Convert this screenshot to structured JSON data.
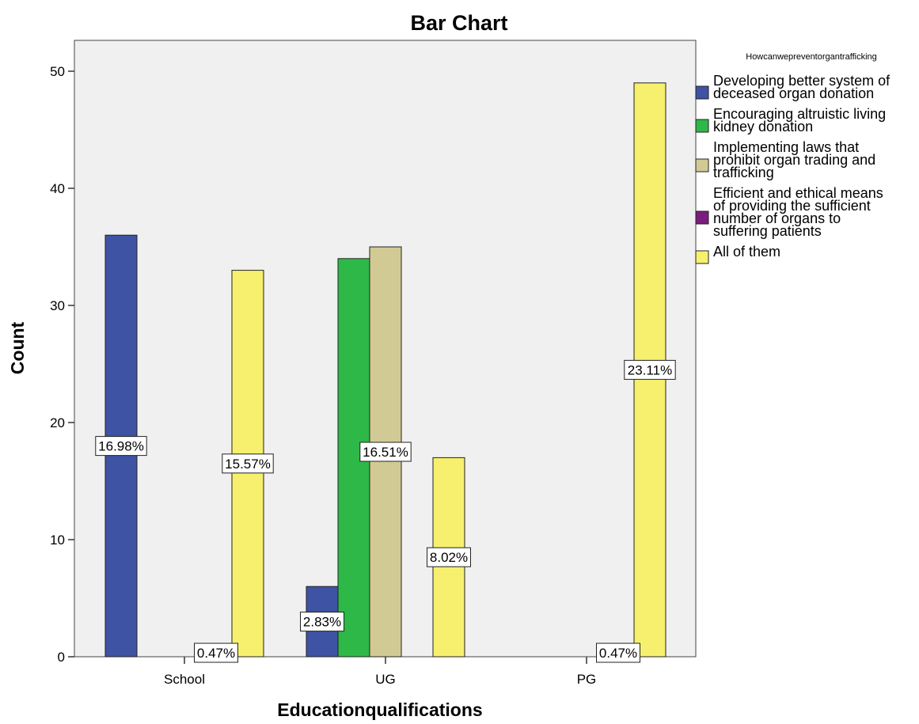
{
  "chart_data": {
    "type": "bar",
    "title": "Bar Chart",
    "xlabel": "Educationqualifications",
    "ylabel": "Count",
    "ylim": [
      0,
      52
    ],
    "yticks": [
      0,
      10,
      20,
      30,
      40,
      50
    ],
    "categories": [
      "School",
      "UG",
      "PG"
    ],
    "legend_title": "Howcanwepreventorgantrafficking",
    "legend_position": "right",
    "grid": false,
    "series": [
      {
        "name": "Developing better system of deceased organ donation",
        "legend_lines": [
          "Developing better system of",
          "deceased organ donation"
        ],
        "color": "#3e53a3",
        "values": [
          36,
          6,
          0
        ],
        "labels": [
          "16.98%",
          "2.83%",
          ""
        ]
      },
      {
        "name": "Encouraging altruistic living kidney donation",
        "legend_lines": [
          "Encouraging altruistic living",
          "kidney donation"
        ],
        "color": "#2eb848",
        "values": [
          0,
          34,
          0
        ],
        "labels": [
          "",
          "",
          ""
        ]
      },
      {
        "name": "Implementing laws that prohibit organ trading and trafficking",
        "legend_lines": [
          "Implementing laws that",
          "prohibit organ trading and",
          "trafficking"
        ],
        "color": "#d1ca94",
        "values": [
          0,
          35,
          0
        ],
        "labels": [
          "",
          "16.51%",
          ""
        ]
      },
      {
        "name": "Efficient and ethical means of providing the sufficient number of organs to suffering patients",
        "legend_lines": [
          "Efficient and ethical means",
          "of providing the sufficient",
          "number of organs to",
          "suffering patients"
        ],
        "color": "#7a1d7e",
        "values": [
          1,
          0,
          1
        ],
        "labels": [
          "0.47%",
          "",
          "0.47%"
        ]
      },
      {
        "name": "All of them",
        "legend_lines": [
          "All of them"
        ],
        "color": "#f6f06e",
        "values": [
          33,
          17,
          49
        ],
        "labels": [
          "15.57%",
          "8.02%",
          "23.11%"
        ]
      }
    ]
  }
}
